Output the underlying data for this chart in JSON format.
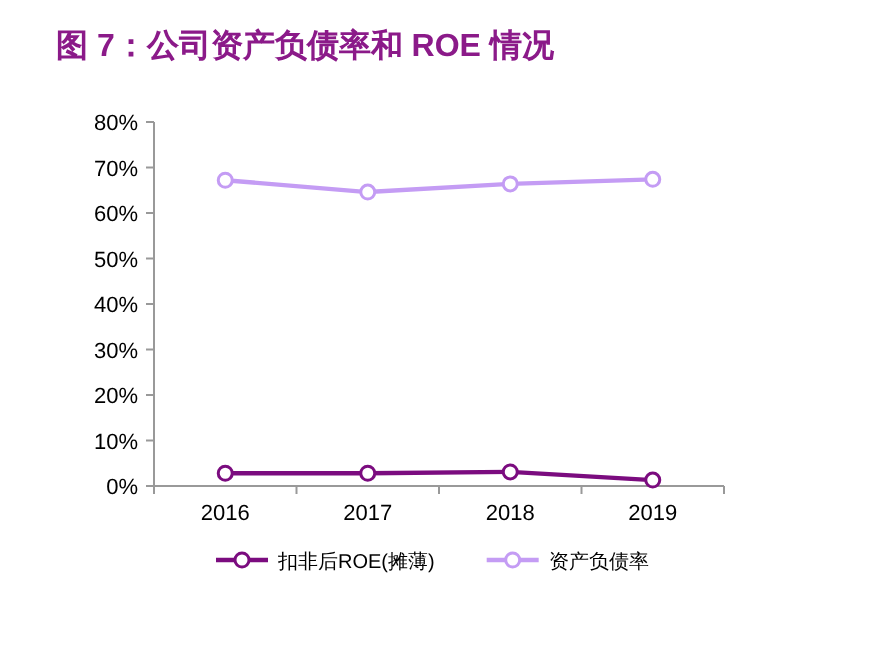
{
  "chart_data": {
    "type": "line",
    "title": "图 7：公司资产负债率和 ROE 情况",
    "categories": [
      "2016",
      "2017",
      "2018",
      "2019"
    ],
    "series": [
      {
        "name": "扣非后ROE(摊薄)",
        "color": "#7b0c7f",
        "values": [
          2.8,
          2.8,
          3.1,
          1.3
        ]
      },
      {
        "name": "资产负债率",
        "color": "#c49cf4",
        "values": [
          67.2,
          64.6,
          66.4,
          67.4
        ]
      }
    ],
    "ylim": [
      0,
      80
    ],
    "yticks": [
      {
        "value": 0,
        "label": "0%"
      },
      {
        "value": 10,
        "label": "10%"
      },
      {
        "value": 20,
        "label": "20%"
      },
      {
        "value": 30,
        "label": "30%"
      },
      {
        "value": 40,
        "label": "40%"
      },
      {
        "value": 50,
        "label": "50%"
      },
      {
        "value": 60,
        "label": "60%"
      },
      {
        "value": 70,
        "label": "70%"
      },
      {
        "value": 80,
        "label": "80%"
      }
    ],
    "marker": "circle",
    "legend": "bottom"
  }
}
